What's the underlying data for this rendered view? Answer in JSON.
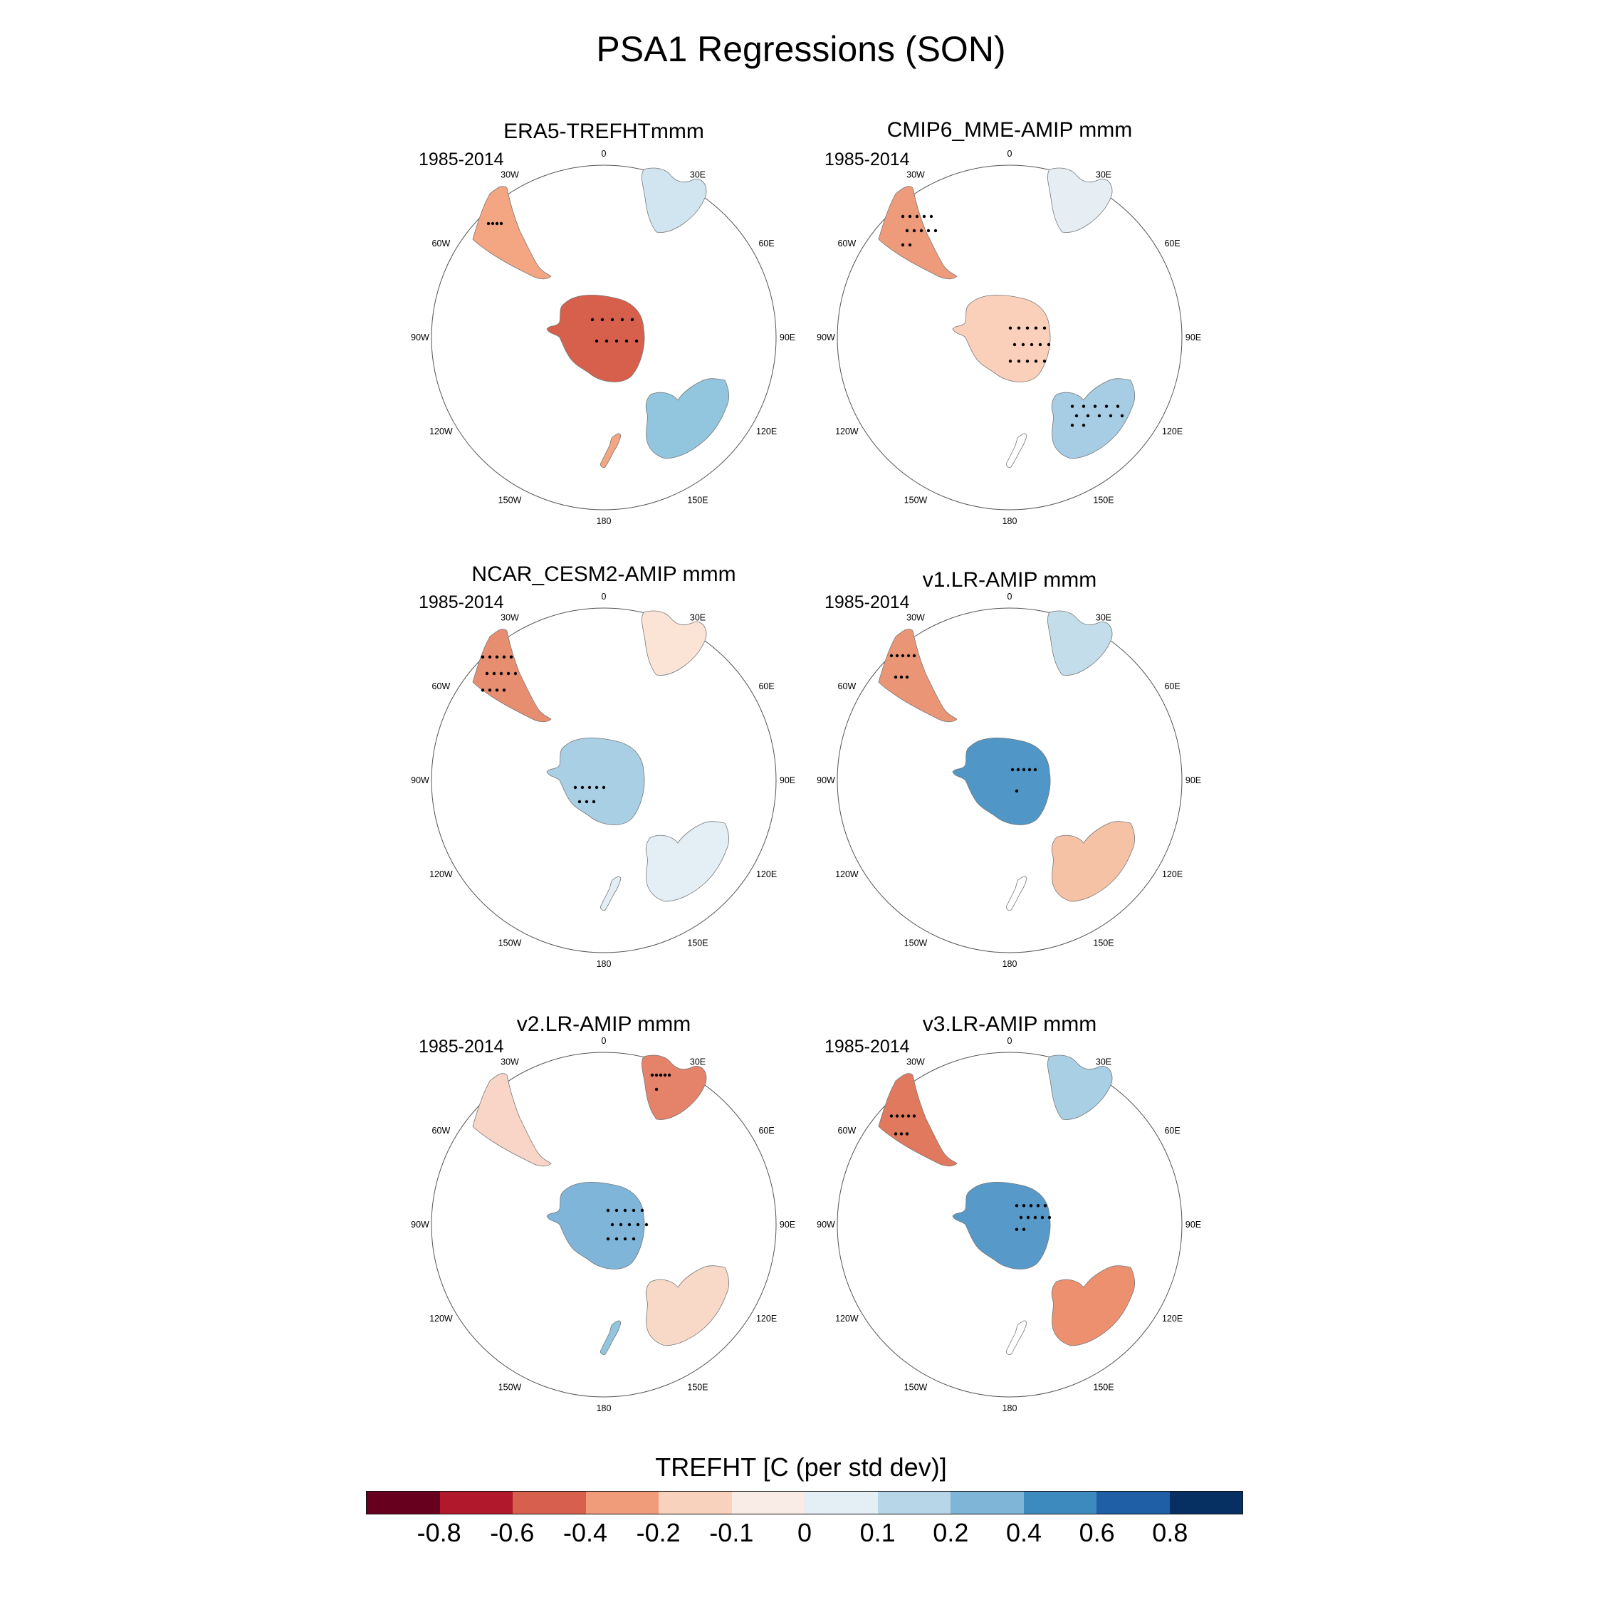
{
  "title": "PSA1 Regressions (SON)",
  "panels": [
    {
      "title": "ERA5-TREFHTmmm",
      "period": "1985-2014",
      "antarctica": "#d7604d",
      "south_america": "#f4a582",
      "africa": "#d1e5f0",
      "australia": "#92c5de",
      "new_zealand": "#f4a582"
    },
    {
      "title": "CMIP6_MME-AMIP  mmm",
      "period": "1985-2014",
      "antarctica": "#fbd0bb",
      "south_america": "#ee9b7b",
      "africa": "#e6eef4",
      "australia": "#a6cde3",
      "new_zealand": "#ffffff"
    },
    {
      "title": "NCAR_CESM2-AMIP  mmm",
      "period": "1985-2014",
      "antarctica": "#a9cfe5",
      "south_america": "#e88e70",
      "africa": "#fbe3d6",
      "australia": "#e4eef5",
      "new_zealand": "#e4eef5"
    },
    {
      "title": "v1.LR-AMIP  mmm",
      "period": "1985-2014",
      "antarctica": "#5096c7",
      "south_america": "#ea9676",
      "africa": "#c4ddeb",
      "australia": "#f6c2a6",
      "new_zealand": "#ffffff"
    },
    {
      "title": "v2.LR-AMIP  mmm",
      "period": "1985-2014",
      "antarctica": "#7fb5d8",
      "south_america": "#f8d5c6",
      "africa": "#e5826a",
      "australia": "#f8d9c8",
      "new_zealand": "#92c5de"
    },
    {
      "title": "v3.LR-AMIP  mmm",
      "period": "1985-2014",
      "antarctica": "#5799c9",
      "south_america": "#e1795e",
      "africa": "#a9cfe5",
      "australia": "#ec9070",
      "new_zealand": "#ffffff"
    }
  ],
  "longitude_labels": [
    "0",
    "30E",
    "60E",
    "90E",
    "120E",
    "150E",
    "180",
    "150W",
    "120W",
    "90W",
    "60W",
    "30W"
  ],
  "colorbar": {
    "title": "TREFHT [C (per std dev)]",
    "colors": [
      "#67001f",
      "#b2182b",
      "#d6604d",
      "#f09c7b",
      "#f9d2bd",
      "#f9ebe5",
      "#e4eef5",
      "#b7d7e8",
      "#7fb6d7",
      "#3d8abf",
      "#1f5fa6",
      "#053061"
    ],
    "labels": [
      "-0.8",
      "-0.6",
      "-0.4",
      "-0.2",
      "-0.1",
      "0",
      "0.1",
      "0.2",
      "0.4",
      "0.6",
      "0.8"
    ]
  }
}
